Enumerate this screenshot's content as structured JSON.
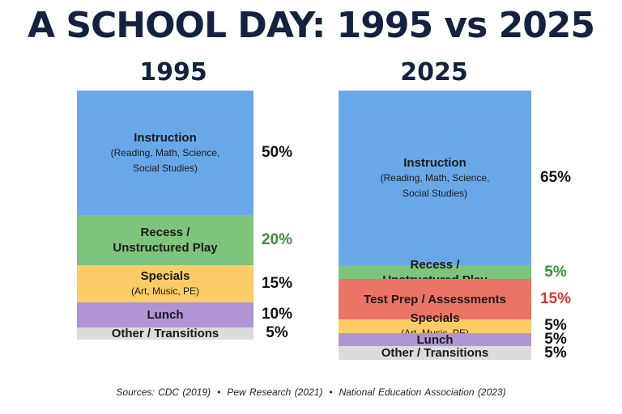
{
  "title": "A SCHOOL DAY: 1995 vs 2025",
  "sources": [
    "Sources:  CDC (2019)",
    "Pew Research (2021)",
    "National Education Association (2023)"
  ],
  "colors": {
    "instruction": "#69a8e8",
    "recess": "#7ec47c",
    "test_prep": "#ec7466",
    "specials": "#fccc67",
    "lunch": "#af95d3",
    "other": "#dcdcdc",
    "pct_default": "#111111",
    "pct_green": "#3a8f3a",
    "pct_red": "#d43a32"
  },
  "chart_data": {
    "type": "bar",
    "stacked": true,
    "unit": "%",
    "categories": [
      "1995",
      "2025"
    ],
    "series": [
      {
        "name": "Instruction",
        "detail": "(Reading, Math, Science,\nSocial Studies)",
        "color_key": "instruction",
        "values": [
          50,
          65
        ],
        "labels": [
          "50%",
          "65%"
        ]
      },
      {
        "name": "Recess /\nUnstructured Play",
        "detail": "",
        "color_key": "recess",
        "values": [
          20,
          5
        ],
        "labels": [
          "20%",
          "5%"
        ]
      },
      {
        "name": "Test Prep / Assessments",
        "detail": "",
        "color_key": "test_prep",
        "values": [
          0,
          15
        ],
        "labels": [
          "",
          "15%"
        ]
      },
      {
        "name": "Specials",
        "detail": "(Art, Music, PE)",
        "color_key": "specials",
        "values": [
          15,
          5
        ],
        "labels": [
          "15%",
          "5%"
        ]
      },
      {
        "name": "Lunch",
        "detail": "",
        "color_key": "lunch",
        "values": [
          10,
          5
        ],
        "labels": [
          "10%",
          "5%"
        ]
      },
      {
        "name": "Other / Transitions",
        "detail": "",
        "color_key": "other",
        "values": [
          5,
          5
        ],
        "labels": [
          "5%",
          "5%"
        ]
      }
    ],
    "label_colors": [
      [
        "pct_default",
        "pct_green",
        "pct_default",
        "pct_default",
        "pct_default",
        "pct_default"
      ],
      [
        "pct_default",
        "pct_green",
        "pct_red",
        "pct_default",
        "pct_default",
        "pct_default"
      ]
    ]
  }
}
